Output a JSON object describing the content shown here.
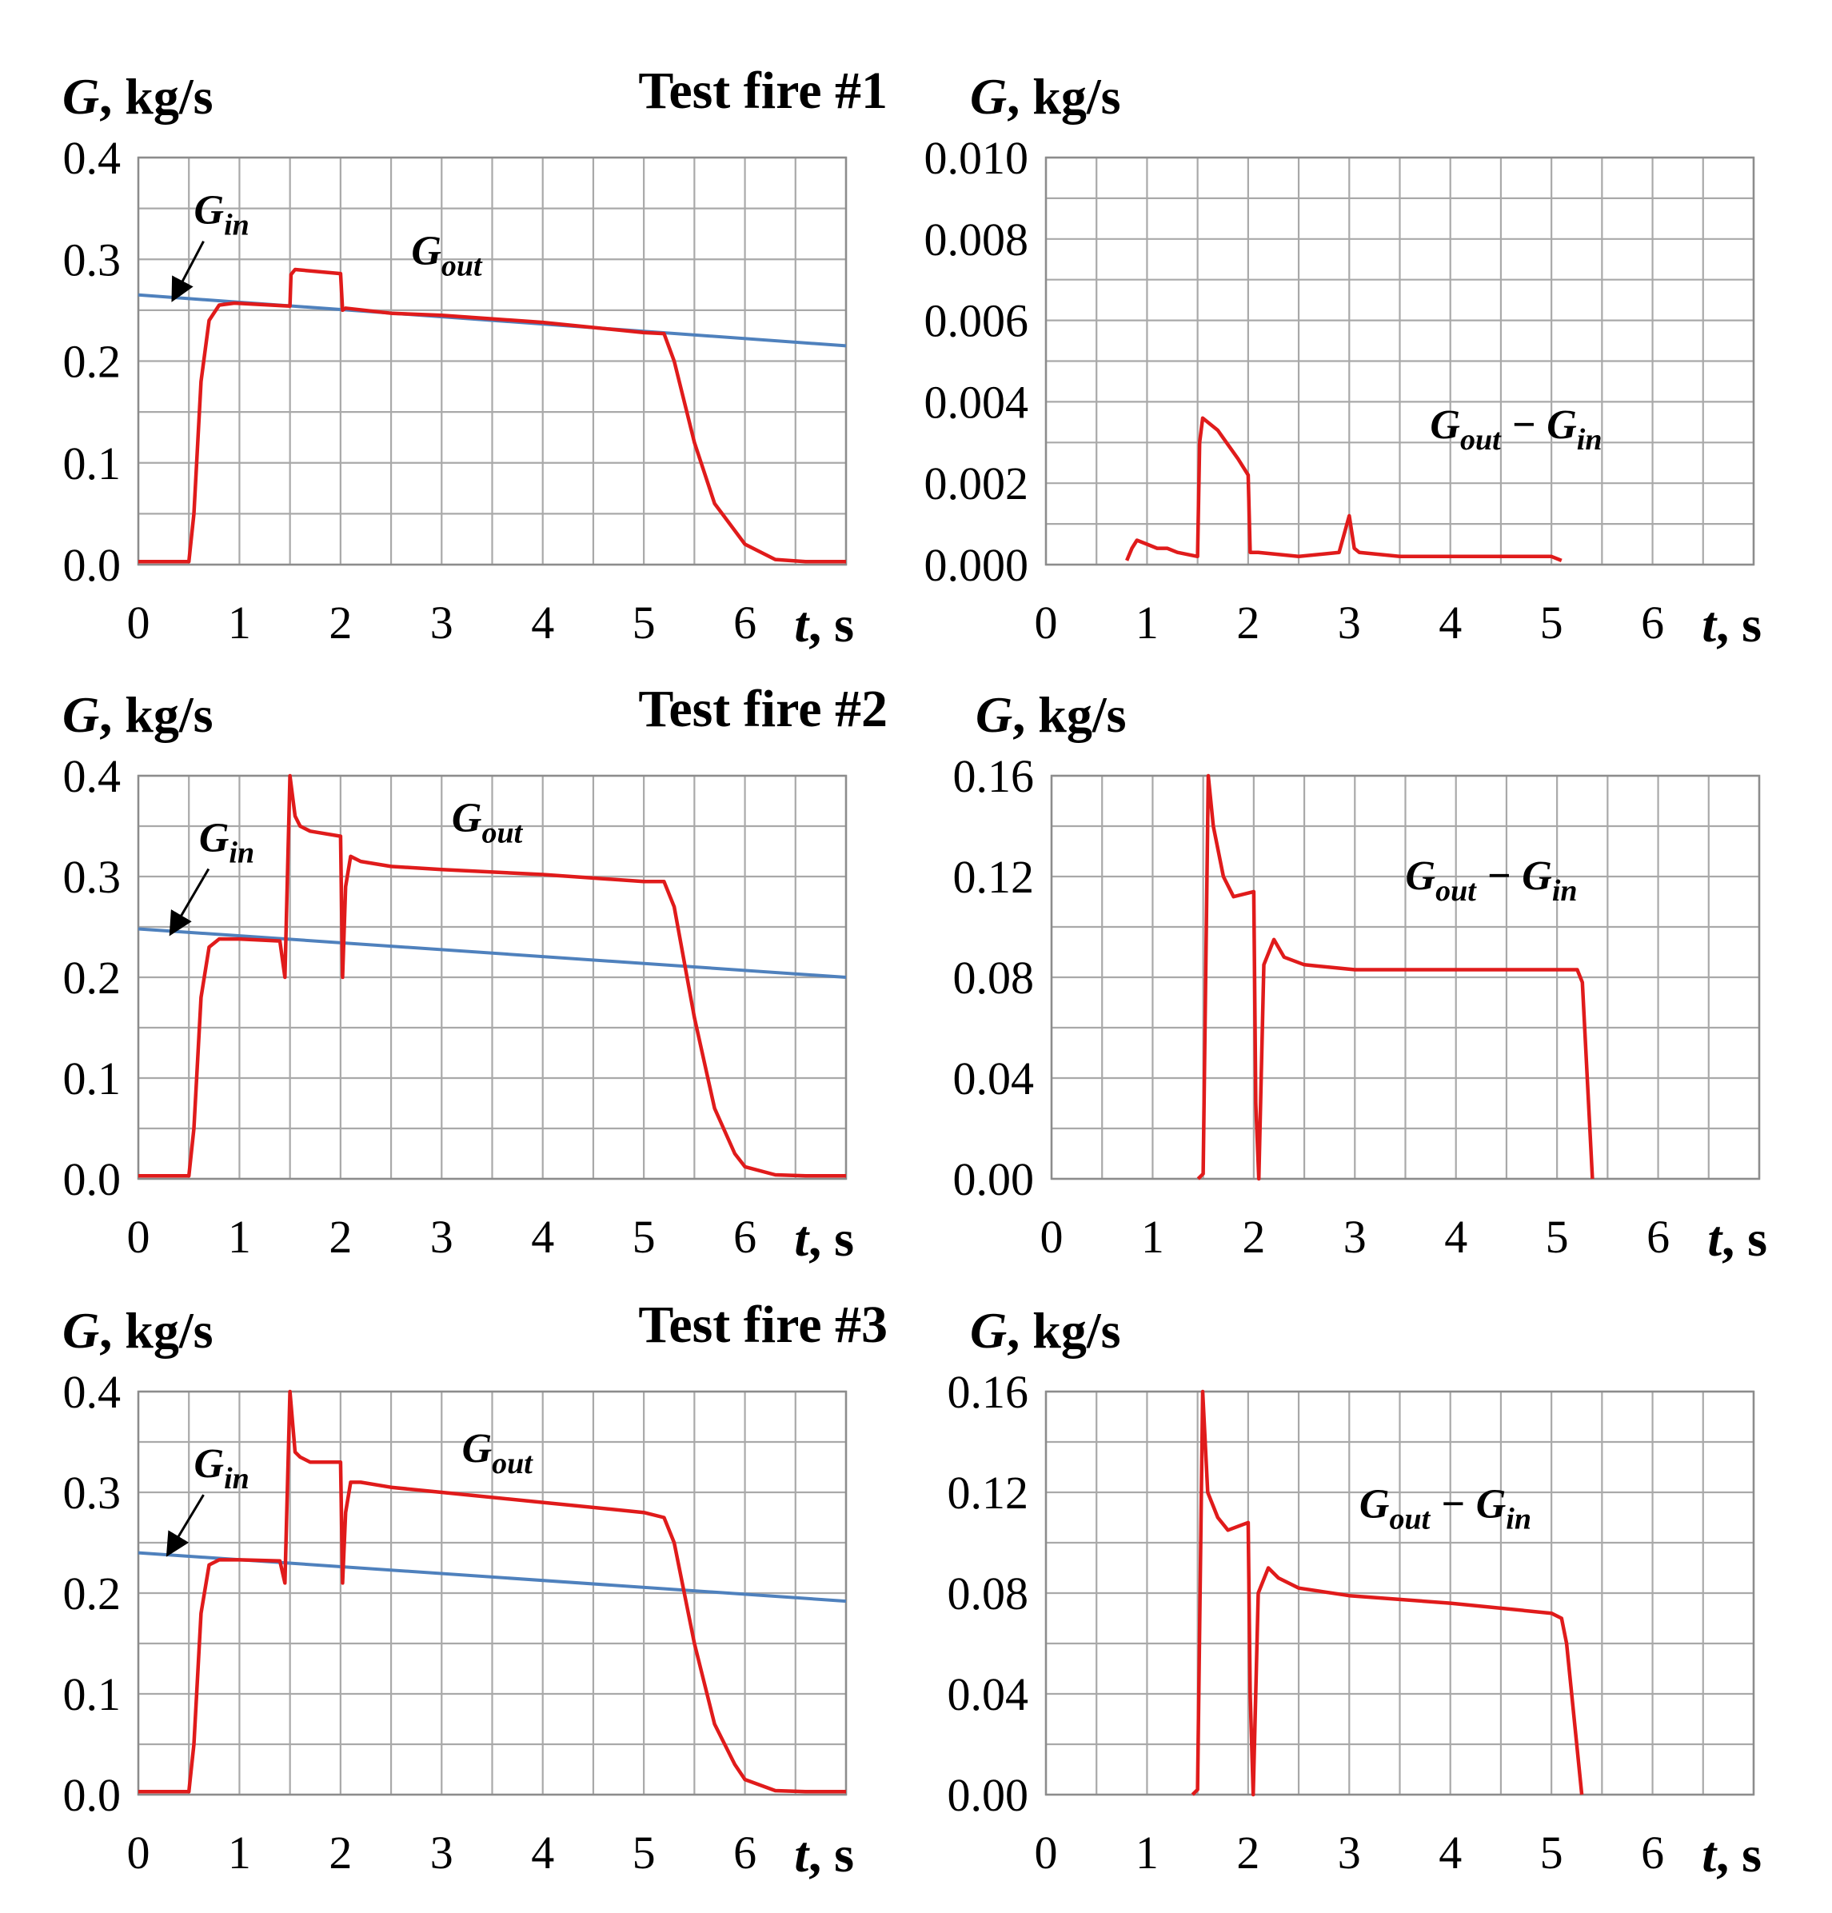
{
  "chart_data": [
    {
      "type": "line",
      "row": 1,
      "col": 1,
      "title": "Test fire #1",
      "ylabel_var": "G",
      "ylabel_unit": ", kg/s",
      "xlabel_var": "t",
      "xlabel_unit": ", s",
      "xlim": [
        0,
        7
      ],
      "ylim": [
        0,
        0.4
      ],
      "xticks": [
        "0",
        "1",
        "2",
        "3",
        "4",
        "5",
        "6"
      ],
      "yticks": [
        "0.0",
        "0.1",
        "0.2",
        "0.3",
        "0.4"
      ],
      "grid": true,
      "annotations": [
        {
          "var": "G",
          "sub": "in",
          "x": 0.55,
          "y": 0.335,
          "arrow_to": [
            0.35,
            0.262
          ]
        },
        {
          "var": "G",
          "sub": "out",
          "x": 2.7,
          "y": 0.295
        }
      ],
      "series": [
        {
          "name": "G_in",
          "color": "#4f81bd",
          "x": [
            0,
            7
          ],
          "y": [
            0.265,
            0.215
          ]
        },
        {
          "name": "G_out",
          "color": "#e01b1b",
          "x": [
            0,
            0.5,
            0.55,
            0.62,
            0.7,
            0.8,
            0.95,
            1.5,
            1.51,
            1.55,
            2.0,
            2.02,
            2.05,
            2.5,
            3.0,
            4.0,
            5.0,
            5.2,
            5.3,
            5.5,
            5.7,
            6.0,
            6.3,
            6.6,
            7.0
          ],
          "y": [
            0.003,
            0.003,
            0.05,
            0.18,
            0.24,
            0.255,
            0.257,
            0.254,
            0.285,
            0.29,
            0.286,
            0.25,
            0.252,
            0.247,
            0.245,
            0.238,
            0.228,
            0.227,
            0.2,
            0.12,
            0.06,
            0.02,
            0.005,
            0.003,
            0.003
          ]
        }
      ]
    },
    {
      "type": "line",
      "row": 1,
      "col": 2,
      "ylabel_var": "G",
      "ylabel_unit": ", kg/s",
      "xlabel_var": "t",
      "xlabel_unit": ", s",
      "xlim": [
        0,
        7
      ],
      "ylim": [
        0,
        0.01
      ],
      "xticks": [
        "0",
        "1",
        "2",
        "3",
        "4",
        "5",
        "6"
      ],
      "yticks": [
        "0.000",
        "0.002",
        "0.004",
        "0.006",
        "0.008",
        "0.010"
      ],
      "grid": true,
      "annotations": [
        {
          "var": "G",
          "sub": "out",
          "minus": " − ",
          "var2": "G",
          "sub2": "in",
          "x": 3.8,
          "y": 0.0031
        }
      ],
      "series": [
        {
          "name": "G_out − G_in",
          "color": "#e01b1b",
          "x": [
            0.8,
            0.85,
            0.9,
            1.0,
            1.1,
            1.2,
            1.3,
            1.5,
            1.52,
            1.55,
            1.7,
            1.9,
            2.0,
            2.02,
            2.1,
            2.5,
            2.9,
            3.0,
            3.05,
            3.1,
            3.5,
            4.0,
            4.5,
            5.0,
            5.1
          ],
          "y": [
            0.0001,
            0.0004,
            0.0006,
            0.0005,
            0.0004,
            0.0004,
            0.0003,
            0.0002,
            0.003,
            0.0036,
            0.0033,
            0.0026,
            0.0022,
            0.0003,
            0.0003,
            0.0002,
            0.0003,
            0.0012,
            0.0004,
            0.0003,
            0.0002,
            0.0002,
            0.0002,
            0.0002,
            0.0001
          ]
        }
      ]
    },
    {
      "type": "line",
      "row": 2,
      "col": 1,
      "title": "Test fire #2",
      "ylabel_var": "G",
      "ylabel_unit": ", kg/s",
      "xlabel_var": "t",
      "xlabel_unit": ", s",
      "xlim": [
        0,
        7
      ],
      "ylim": [
        0,
        0.4
      ],
      "xticks": [
        "0",
        "1",
        "2",
        "3",
        "4",
        "5",
        "6"
      ],
      "yticks": [
        "0.0",
        "0.1",
        "0.2",
        "0.3",
        "0.4"
      ],
      "grid": true,
      "annotations": [
        {
          "var": "G",
          "sub": "in",
          "x": 0.6,
          "y": 0.325,
          "arrow_to": [
            0.33,
            0.245
          ]
        },
        {
          "var": "G",
          "sub": "out",
          "x": 3.1,
          "y": 0.345
        }
      ],
      "series": [
        {
          "name": "G_in",
          "color": "#4f81bd",
          "x": [
            0,
            7
          ],
          "y": [
            0.248,
            0.2
          ]
        },
        {
          "name": "G_out",
          "color": "#e01b1b",
          "x": [
            0,
            0.5,
            0.55,
            0.62,
            0.7,
            0.8,
            1.0,
            1.4,
            1.45,
            1.5,
            1.55,
            1.6,
            1.7,
            2.0,
            2.02,
            2.05,
            2.1,
            2.2,
            2.5,
            3.0,
            4.0,
            5.0,
            5.2,
            5.3,
            5.5,
            5.7,
            5.9,
            6.0,
            6.3,
            6.6,
            7.0
          ],
          "y": [
            0.003,
            0.003,
            0.05,
            0.18,
            0.23,
            0.238,
            0.238,
            0.236,
            0.2,
            0.4,
            0.36,
            0.35,
            0.345,
            0.34,
            0.2,
            0.29,
            0.32,
            0.315,
            0.31,
            0.307,
            0.302,
            0.295,
            0.295,
            0.27,
            0.16,
            0.07,
            0.025,
            0.012,
            0.004,
            0.003,
            0.003
          ]
        }
      ]
    },
    {
      "type": "line",
      "row": 2,
      "col": 2,
      "ylabel_var": "G",
      "ylabel_unit": ", kg/s",
      "xlabel_var": "t",
      "xlabel_unit": ", s",
      "xlim": [
        0,
        7
      ],
      "ylim": [
        0,
        0.16
      ],
      "xticks": [
        "0",
        "1",
        "2",
        "3",
        "4",
        "5",
        "6"
      ],
      "yticks": [
        "0.00",
        "0.04",
        "0.08",
        "0.12",
        "0.16"
      ],
      "grid": true,
      "annotations": [
        {
          "var": "G",
          "sub": "out",
          "minus": " − ",
          "var2": "G",
          "sub2": "in",
          "x": 3.5,
          "y": 0.115
        }
      ],
      "series": [
        {
          "name": "G_out − G_in",
          "color": "#e01b1b",
          "x": [
            1.45,
            1.5,
            1.55,
            1.6,
            1.7,
            1.8,
            2.0,
            2.02,
            2.05,
            2.1,
            2.2,
            2.3,
            2.5,
            3.0,
            4.0,
            5.0,
            5.2,
            5.25,
            5.35
          ],
          "y": [
            0.0,
            0.002,
            0.16,
            0.14,
            0.12,
            0.112,
            0.114,
            0.03,
            0.0,
            0.085,
            0.095,
            0.088,
            0.085,
            0.083,
            0.083,
            0.083,
            0.083,
            0.078,
            0.0
          ]
        }
      ]
    },
    {
      "type": "line",
      "row": 3,
      "col": 1,
      "title": "Test fire #3",
      "ylabel_var": "G",
      "ylabel_unit": ", kg/s",
      "xlabel_var": "t",
      "xlabel_unit": ", s",
      "xlim": [
        0,
        7
      ],
      "ylim": [
        0,
        0.4
      ],
      "xticks": [
        "0",
        "1",
        "2",
        "3",
        "4",
        "5",
        "6"
      ],
      "yticks": [
        "0.0",
        "0.1",
        "0.2",
        "0.3",
        "0.4"
      ],
      "grid": true,
      "annotations": [
        {
          "var": "G",
          "sub": "in",
          "x": 0.55,
          "y": 0.315,
          "arrow_to": [
            0.3,
            0.24
          ]
        },
        {
          "var": "G",
          "sub": "out",
          "x": 3.2,
          "y": 0.33
        }
      ],
      "series": [
        {
          "name": "G_in",
          "color": "#4f81bd",
          "x": [
            0,
            7
          ],
          "y": [
            0.24,
            0.192
          ]
        },
        {
          "name": "G_out",
          "color": "#e01b1b",
          "x": [
            0,
            0.5,
            0.55,
            0.62,
            0.7,
            0.8,
            1.0,
            1.4,
            1.45,
            1.5,
            1.55,
            1.6,
            1.7,
            2.0,
            2.02,
            2.05,
            2.1,
            2.2,
            2.5,
            3.0,
            4.0,
            5.0,
            5.2,
            5.3,
            5.5,
            5.7,
            5.9,
            6.0,
            6.3,
            6.6,
            7.0
          ],
          "y": [
            0.003,
            0.003,
            0.05,
            0.18,
            0.228,
            0.233,
            0.233,
            0.232,
            0.21,
            0.4,
            0.34,
            0.335,
            0.33,
            0.33,
            0.21,
            0.28,
            0.31,
            0.31,
            0.305,
            0.3,
            0.29,
            0.28,
            0.275,
            0.25,
            0.15,
            0.07,
            0.03,
            0.015,
            0.004,
            0.003,
            0.003
          ]
        }
      ]
    },
    {
      "type": "line",
      "row": 3,
      "col": 2,
      "ylabel_var": "G",
      "ylabel_unit": ", kg/s",
      "xlabel_var": "t",
      "xlabel_unit": ", s",
      "xlim": [
        0,
        7
      ],
      "ylim": [
        0,
        0.16
      ],
      "xticks": [
        "0",
        "1",
        "2",
        "3",
        "4",
        "5",
        "6"
      ],
      "yticks": [
        "0.00",
        "0.04",
        "0.08",
        "0.12",
        "0.16"
      ],
      "grid": true,
      "annotations": [
        {
          "var": "G",
          "sub": "out",
          "minus": " − ",
          "var2": "G",
          "sub2": "in",
          "x": 3.1,
          "y": 0.11
        }
      ],
      "series": [
        {
          "name": "G_out − G_in",
          "color": "#e01b1b",
          "x": [
            1.45,
            1.5,
            1.55,
            1.6,
            1.7,
            1.8,
            2.0,
            2.02,
            2.05,
            2.1,
            2.2,
            2.3,
            2.5,
            3.0,
            4.0,
            5.0,
            5.1,
            5.15,
            5.3
          ],
          "y": [
            0.0,
            0.002,
            0.16,
            0.12,
            0.11,
            0.105,
            0.108,
            0.04,
            0.0,
            0.08,
            0.09,
            0.086,
            0.082,
            0.079,
            0.076,
            0.072,
            0.07,
            0.06,
            0.0
          ]
        }
      ]
    }
  ]
}
